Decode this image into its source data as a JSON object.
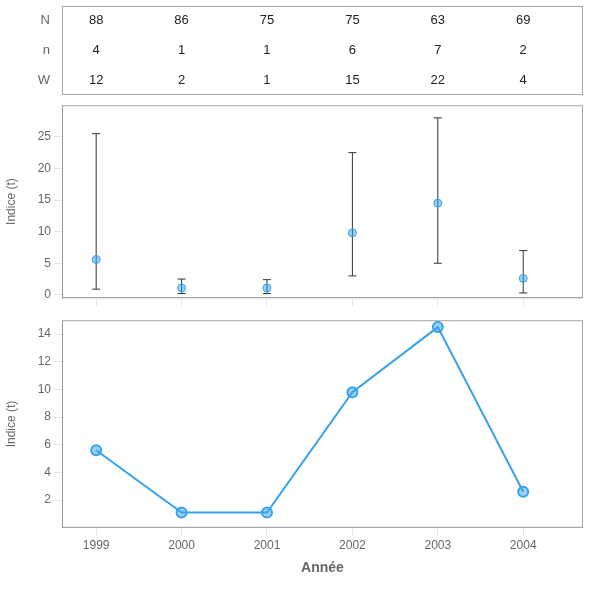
{
  "chart_data": [
    {
      "type": "table",
      "x": [
        1999,
        2000,
        2001,
        2002,
        2003,
        2004
      ],
      "xlim": [
        1998.6,
        2004.7
      ],
      "series": [
        {
          "name": "N",
          "values": [
            88,
            86,
            75,
            75,
            63,
            69
          ]
        },
        {
          "name": "n",
          "values": [
            4,
            1,
            1,
            6,
            7,
            2
          ]
        },
        {
          "name": "W",
          "values": [
            12,
            2,
            1,
            15,
            22,
            4
          ]
        }
      ]
    },
    {
      "type": "scatter",
      "x": [
        1999,
        2000,
        2001,
        2002,
        2003,
        2004
      ],
      "values": [
        5.6,
        1.1,
        1.1,
        9.8,
        14.5,
        2.6
      ],
      "ci_lower": [
        0.9,
        0.2,
        0.2,
        3.0,
        5.0,
        0.3
      ],
      "ci_upper": [
        25.5,
        2.5,
        2.4,
        22.5,
        28.0,
        7.0
      ],
      "xlim": [
        1998.6,
        2004.7
      ],
      "xticks": [
        1999,
        2000,
        2001,
        2002,
        2003,
        2004
      ],
      "ylim": [
        -0.5,
        30
      ],
      "yticks": [
        0,
        5,
        10,
        15,
        20,
        25
      ],
      "ylabel": "Indice (t)",
      "tick_labels": "y",
      "grid": false,
      "marker": "circle"
    },
    {
      "type": "line",
      "x": [
        1999,
        2000,
        2001,
        2002,
        2003,
        2004
      ],
      "values": [
        5.6,
        1.1,
        1.1,
        9.8,
        14.5,
        2.6
      ],
      "xlim": [
        1998.6,
        2004.7
      ],
      "xticks": [
        1999,
        2000,
        2001,
        2002,
        2003,
        2004
      ],
      "ylim": [
        0,
        15
      ],
      "yticks": [
        2,
        4,
        6,
        8,
        10,
        12,
        14
      ],
      "ylabel": "Indice (t)",
      "xlabel": "Année",
      "grid": false,
      "marker": "circle",
      "line_style": "solid"
    }
  ]
}
